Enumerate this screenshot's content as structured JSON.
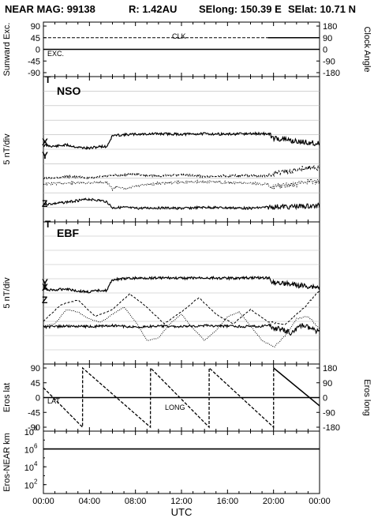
{
  "header": {
    "mission": "NEAR MAG: 99138",
    "range": "R: 1.42AU",
    "selong": "SElong:  150.39 E",
    "selat": "SElat:   10.71 N"
  },
  "x_axis": {
    "label": "UTC",
    "ticks": [
      "00:00",
      "04:00",
      "08:00",
      "12:00",
      "16:00",
      "20:00",
      "00:00"
    ],
    "range_hours": [
      0,
      24
    ]
  },
  "panels": {
    "p1": {
      "left_label": "Sunward Exc.",
      "right_label": "Clock Angle",
      "left_ticks": [
        "90",
        "45",
        "0",
        "-45",
        "-90"
      ],
      "right_ticks": [
        "180",
        "90",
        "0",
        "-90",
        "-180"
      ],
      "series_labels": {
        "clk": "CLK",
        "exc": "EXC."
      }
    },
    "p2": {
      "left_label": "5 nT/div",
      "title": "NSO",
      "series_labels": {
        "t": "T",
        "x": "X",
        "y": "Y",
        "z": "Z"
      }
    },
    "p3": {
      "left_label": "5 nT/div",
      "title": "EBF",
      "series_labels": {
        "t": "T",
        "x": "X",
        "y": "Y",
        "z": "Z"
      }
    },
    "p4": {
      "left_label": "Eros lat",
      "right_label": "Eros long",
      "left_ticks": [
        "90",
        "45",
        "0",
        "-45",
        "-90"
      ],
      "right_ticks": [
        "180",
        "90",
        "0",
        "-90",
        "-180"
      ],
      "series_labels": {
        "lat": "LAT",
        "long": "LONG"
      }
    },
    "p5": {
      "left_label": "Eros-NEAR km",
      "left_ticks_exp": [
        "8",
        "6",
        "4",
        "2"
      ]
    }
  },
  "colors": {
    "frame": "#000000",
    "gridline": "#b8b8b8",
    "trace": "#000000"
  },
  "chart_data": [
    {
      "type": "line",
      "panel": "p1",
      "x_unit": "UTC hours",
      "ylim": [
        -90,
        90
      ],
      "y2lim": [
        -180,
        180
      ],
      "series": [
        {
          "name": "CLK",
          "axis": "right",
          "x": [
            0,
            24
          ],
          "values": [
            90,
            90
          ]
        },
        {
          "name": "EXC.",
          "axis": "left",
          "x": [
            0,
            24
          ],
          "values": [
            0,
            0
          ]
        }
      ]
    },
    {
      "type": "line",
      "panel": "p2",
      "x_unit": "UTC hours",
      "y_scale": "5 nT/div",
      "series": [
        {
          "name": "T",
          "x": [
            0,
            1,
            2,
            3,
            4,
            5,
            5.5,
            6,
            7,
            8,
            10,
            12,
            14,
            16,
            18,
            19.5,
            20,
            21,
            22,
            23,
            24
          ],
          "values": [
            0.8,
            0.6,
            0.9,
            0.4,
            0.2,
            0.6,
            0.5,
            2.8,
            3.0,
            3.1,
            3.2,
            3.1,
            3.2,
            3.1,
            3.2,
            3.2,
            2.3,
            2.0,
            1.6,
            1.4,
            1.2
          ]
        },
        {
          "name": "X",
          "x": [
            0,
            2,
            4,
            6,
            8,
            10,
            12,
            14,
            16,
            18,
            19.5,
            20,
            21,
            22,
            23,
            24
          ],
          "values": [
            -6.0,
            -5.6,
            -5.9,
            -5.4,
            -5.2,
            -5.5,
            -5.3,
            -5.6,
            -5.5,
            -5.4,
            -5.6,
            -5.0,
            -4.6,
            -4.2,
            -3.7,
            -4.0
          ]
        },
        {
          "name": "Y",
          "x": [
            0,
            2,
            4,
            5.5,
            6,
            6.5,
            7,
            8,
            10,
            12,
            14,
            16,
            18,
            19.5,
            20,
            21,
            22,
            23,
            24
          ],
          "values": [
            -7.2,
            -7.0,
            -6.9,
            -6.8,
            -8.2,
            -7.6,
            -8.3,
            -7.7,
            -7.0,
            -6.8,
            -6.7,
            -6.9,
            -7.0,
            -7.2,
            -7.8,
            -7.5,
            -7.2,
            -6.6,
            -6.8
          ]
        },
        {
          "name": "Z",
          "x": [
            0,
            1,
            2,
            3,
            4,
            5,
            5.5,
            6,
            7,
            8,
            10,
            12,
            14,
            16,
            18,
            20,
            22,
            24
          ],
          "values": [
            -11.4,
            -11.2,
            -10.9,
            -10.6,
            -10.3,
            -10.6,
            -10.8,
            -12.1,
            -12.0,
            -12.2,
            -12.1,
            -12.2,
            -12.0,
            -12.1,
            -12.2,
            -11.9,
            -11.8,
            -11.7
          ]
        }
      ]
    },
    {
      "type": "line",
      "panel": "p3",
      "x_unit": "UTC hours",
      "y_scale": "5 nT/div",
      "series": [
        {
          "name": "T",
          "x": [
            0,
            1,
            2,
            3,
            4,
            5,
            5.5,
            6,
            7,
            8,
            10,
            12,
            14,
            16,
            18,
            19.5,
            20,
            21,
            22,
            23,
            24
          ],
          "values": [
            0.8,
            0.6,
            0.9,
            0.4,
            0.2,
            0.6,
            0.5,
            2.8,
            3.0,
            3.1,
            3.2,
            3.1,
            3.2,
            3.1,
            3.2,
            3.2,
            2.3,
            2.0,
            1.6,
            1.4,
            1.2
          ]
        },
        {
          "name": "X",
          "x": [
            0,
            1.5,
            3,
            4.5,
            6,
            7.5,
            9,
            10.5,
            12,
            13.5,
            15,
            16.5,
            18,
            19.5,
            21,
            22.5,
            24
          ],
          "values": [
            -6.0,
            -2.5,
            -1.5,
            -5.0,
            -3.5,
            -0.2,
            -3.0,
            -6.5,
            -4.0,
            -1.0,
            -4.5,
            -6.5,
            -3.5,
            -6.0,
            -6.8,
            -3.5,
            0.5
          ]
        },
        {
          "name": "Y",
          "x": [
            0,
            1,
            2,
            3,
            4,
            5,
            6,
            7,
            8,
            9,
            10,
            11,
            12,
            13,
            14,
            15,
            16,
            17,
            18,
            19,
            20,
            21,
            22,
            23,
            24
          ],
          "values": [
            -7.0,
            -6.5,
            -3.5,
            -4.0,
            -5.5,
            -6.2,
            -4.5,
            -3.0,
            -6.0,
            -10.0,
            -9.5,
            -6.5,
            -4.5,
            -7.5,
            -10.0,
            -8.0,
            -5.0,
            -4.0,
            -7.0,
            -10.0,
            -11.5,
            -9.0,
            -5.5,
            -5.0,
            -7.5
          ]
        },
        {
          "name": "Z",
          "x": [
            0,
            2,
            4,
            6,
            8,
            10,
            12,
            14,
            16,
            18,
            19.5,
            20.5,
            21.5,
            22.5,
            23.5,
            24
          ],
          "values": [
            -7.2,
            -7.0,
            -7.1,
            -6.9,
            -7.2,
            -7.0,
            -7.1,
            -6.9,
            -7.0,
            -7.1,
            -7.0,
            -7.6,
            -8.4,
            -6.8,
            -7.8,
            -8.2
          ]
        }
      ]
    },
    {
      "type": "line",
      "panel": "p4",
      "x_unit": "UTC hours",
      "ylim": [
        -90,
        90
      ],
      "y2lim": [
        -180,
        180
      ],
      "series": [
        {
          "name": "LAT",
          "axis": "left",
          "x": [
            0,
            24
          ],
          "values": [
            0,
            0
          ]
        },
        {
          "name": "LONG",
          "axis": "right",
          "x": [
            0,
            3.4,
            3.41,
            9.3,
            9.31,
            14.4,
            14.41,
            20.0,
            20.01,
            24
          ],
          "values": [
            60,
            -180,
            180,
            -180,
            180,
            -180,
            180,
            -180,
            180,
            -50
          ]
        }
      ]
    },
    {
      "type": "line",
      "panel": "p5",
      "x_unit": "UTC hours",
      "y_scale": "log10 km",
      "ylim_exp": [
        1,
        8
      ],
      "series": [
        {
          "name": "Eros-NEAR",
          "x": [
            0,
            24
          ],
          "values_exp": [
            6,
            6
          ]
        }
      ]
    }
  ]
}
